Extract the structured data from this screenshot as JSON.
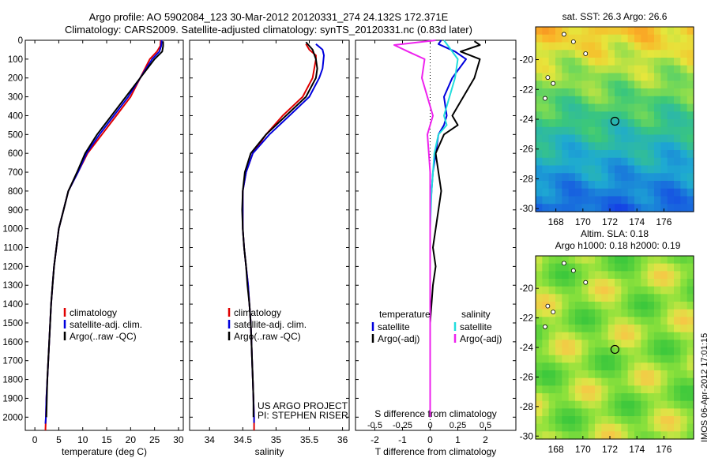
{
  "header": {
    "line1": "Argo profile: AO 5902084_123 30-Mar-2012 20120331_274 24.132S 172.371E",
    "line2": "Climatology: CARS2009. Satellite-adjusted climatology: synTS_20120331.nc (0.83d later)"
  },
  "credit": {
    "line1": "US ARGO PROJECT",
    "line2": "PI: STEPHEN RISER"
  },
  "stamp": "IMOS 06-Apr-2012 17:01:15",
  "colors": {
    "climatology": "#e00000",
    "satellite": "#0000dd",
    "argo": "#000000",
    "cyan": "#22dddd",
    "magenta": "#ee22ee"
  },
  "chart_data": [
    {
      "type": "line",
      "xlabel": "temperature (deg C)",
      "ylabel": "",
      "xlim": [
        -2,
        31
      ],
      "ylim": [
        2070,
        0
      ],
      "xticks": [
        0,
        5,
        10,
        15,
        20,
        25,
        30
      ],
      "yticks": [
        0,
        100,
        200,
        300,
        400,
        500,
        600,
        700,
        800,
        900,
        1000,
        1100,
        1200,
        1300,
        1400,
        1500,
        1600,
        1700,
        1800,
        1900,
        2000
      ],
      "legend": [
        "climatology",
        "satellite-adj. clim.",
        "Argo(..raw -QC)"
      ],
      "series": [
        {
          "name": "climatology",
          "color": "#e00000",
          "points": [
            [
              26.3,
              0
            ],
            [
              26.2,
              30
            ],
            [
              25.5,
              60
            ],
            [
              24,
              100
            ],
            [
              22,
              200
            ],
            [
              20,
              300
            ],
            [
              17,
              400
            ],
            [
              14,
              500
            ],
            [
              11,
              600
            ],
            [
              9,
              700
            ],
            [
              7,
              800
            ],
            [
              6,
              900
            ],
            [
              5,
              1000
            ],
            [
              4.5,
              1100
            ],
            [
              4,
              1200
            ],
            [
              3.7,
              1300
            ],
            [
              3.4,
              1400
            ],
            [
              3.2,
              1500
            ],
            [
              3,
              1600
            ],
            [
              2.8,
              1700
            ],
            [
              2.6,
              1800
            ],
            [
              2.4,
              1900
            ],
            [
              2.3,
              2000
            ],
            [
              2.2,
              2070
            ]
          ]
        },
        {
          "name": "satellite-adj. clim.",
          "color": "#0000dd",
          "points": [
            [
              26.5,
              0
            ],
            [
              26.4,
              30
            ],
            [
              26,
              60
            ],
            [
              24.5,
              100
            ],
            [
              22,
              200
            ],
            [
              19.5,
              300
            ],
            [
              16.5,
              400
            ],
            [
              13.5,
              500
            ],
            [
              10.8,
              600
            ],
            [
              9,
              700
            ],
            [
              7,
              800
            ],
            [
              6,
              900
            ],
            [
              5,
              1000
            ],
            [
              4.5,
              1100
            ],
            [
              4,
              1200
            ],
            [
              3.7,
              1300
            ],
            [
              3.4,
              1400
            ],
            [
              3.2,
              1500
            ],
            [
              3,
              1600
            ],
            [
              2.8,
              1700
            ],
            [
              2.6,
              1800
            ],
            [
              2.4,
              1900
            ],
            [
              2.3,
              2000
            ],
            [
              2.2,
              2035
            ]
          ]
        },
        {
          "name": "Argo(..raw -QC)",
          "color": "#000000",
          "points": [
            [
              26.8,
              5
            ],
            [
              26.8,
              30
            ],
            [
              26.6,
              60
            ],
            [
              25,
              100
            ],
            [
              22,
              200
            ],
            [
              19,
              300
            ],
            [
              16,
              400
            ],
            [
              13,
              500
            ],
            [
              10.5,
              600
            ],
            [
              8.8,
              700
            ],
            [
              7,
              800
            ],
            [
              6,
              900
            ],
            [
              5,
              1000
            ],
            [
              4.5,
              1100
            ],
            [
              4,
              1200
            ],
            [
              3.7,
              1300
            ],
            [
              3.4,
              1400
            ],
            [
              3.2,
              1500
            ],
            [
              3,
              1600
            ],
            [
              2.8,
              1700
            ],
            [
              2.6,
              1800
            ],
            [
              2.5,
              1900
            ],
            [
              2.4,
              2000
            ]
          ]
        }
      ]
    },
    {
      "type": "line",
      "xlabel": "salinity",
      "ylabel": "",
      "xlim": [
        33.7,
        36.1
      ],
      "ylim": [
        2070,
        0
      ],
      "xticks": [
        34,
        34.5,
        35,
        35.5,
        36
      ],
      "legend": [
        "climatology",
        "satellite-adj. clim.",
        "Argo(..raw -QC)"
      ],
      "series": [
        {
          "name": "climatology",
          "color": "#e00000",
          "points": [
            [
              35.45,
              20
            ],
            [
              35.5,
              50
            ],
            [
              35.6,
              80
            ],
            [
              35.6,
              100
            ],
            [
              35.55,
              200
            ],
            [
              35.4,
              300
            ],
            [
              35.1,
              400
            ],
            [
              34.85,
              500
            ],
            [
              34.65,
              600
            ],
            [
              34.55,
              700
            ],
            [
              34.5,
              800
            ],
            [
              34.5,
              900
            ],
            [
              34.5,
              1000
            ],
            [
              34.52,
              1100
            ],
            [
              34.55,
              1200
            ],
            [
              34.58,
              1300
            ],
            [
              34.6,
              1400
            ],
            [
              34.62,
              1500
            ],
            [
              34.63,
              1600
            ],
            [
              34.64,
              1700
            ],
            [
              34.65,
              1800
            ],
            [
              34.66,
              1900
            ],
            [
              34.67,
              2000
            ],
            [
              34.67,
              2070
            ]
          ]
        },
        {
          "name": "satellite-adj. clim.",
          "color": "#0000dd",
          "points": [
            [
              35.6,
              20
            ],
            [
              35.7,
              50
            ],
            [
              35.72,
              80
            ],
            [
              35.7,
              150
            ],
            [
              35.65,
              200
            ],
            [
              35.5,
              300
            ],
            [
              35.2,
              400
            ],
            [
              34.9,
              500
            ],
            [
              34.65,
              600
            ],
            [
              34.55,
              700
            ],
            [
              34.5,
              800
            ],
            [
              34.5,
              900
            ],
            [
              34.5,
              1000
            ],
            [
              34.52,
              1100
            ],
            [
              34.55,
              1200
            ],
            [
              34.58,
              1300
            ],
            [
              34.6,
              1400
            ],
            [
              34.62,
              1500
            ],
            [
              34.63,
              1600
            ],
            [
              34.64,
              1700
            ],
            [
              34.65,
              1800
            ],
            [
              34.66,
              1900
            ],
            [
              34.67,
              2000
            ],
            [
              34.67,
              2030
            ]
          ]
        },
        {
          "name": "Argo(..raw -QC)",
          "color": "#000000",
          "points": [
            [
              35.45,
              10
            ],
            [
              35.55,
              50
            ],
            [
              35.6,
              100
            ],
            [
              35.62,
              150
            ],
            [
              35.6,
              200
            ],
            [
              35.45,
              300
            ],
            [
              35.15,
              400
            ],
            [
              34.85,
              500
            ],
            [
              34.62,
              600
            ],
            [
              34.53,
              700
            ],
            [
              34.5,
              800
            ],
            [
              34.49,
              900
            ],
            [
              34.5,
              1000
            ],
            [
              34.52,
              1100
            ],
            [
              34.55,
              1200
            ],
            [
              34.57,
              1300
            ],
            [
              34.6,
              1400
            ],
            [
              34.62,
              1500
            ],
            [
              34.63,
              1600
            ],
            [
              34.64,
              1700
            ],
            [
              34.65,
              1800
            ],
            [
              34.66,
              1900
            ],
            [
              34.66,
              2000
            ]
          ]
        }
      ]
    },
    {
      "type": "line",
      "xlabel": "T difference from climatology",
      "x2label": "S difference from climatology",
      "ylabel": "",
      "xlim": [
        -2.7,
        3.1
      ],
      "ylim": [
        2070,
        0
      ],
      "xticks": [
        -2,
        -1,
        0,
        1,
        2
      ],
      "x2ticks": [
        -0.5,
        -0.25,
        0,
        0.25,
        0.5
      ],
      "legend_groups": [
        {
          "title": "temperature",
          "items": [
            "satellite",
            "Argo(-adj)"
          ]
        },
        {
          "title": "salinity",
          "items": [
            "satellite",
            "Argo(-adj)"
          ]
        }
      ],
      "series": [
        {
          "name": "temperature satellite",
          "color": "#0000dd",
          "points": [
            [
              0.4,
              0
            ],
            [
              0.3,
              20
            ],
            [
              0.9,
              60
            ],
            [
              1.3,
              100
            ],
            [
              0.8,
              200
            ],
            [
              0.5,
              300
            ],
            [
              0.6,
              400
            ],
            [
              0.5,
              450
            ],
            [
              0.3,
              500
            ],
            [
              0.2,
              600
            ],
            [
              0.1,
              700
            ],
            [
              0.05,
              800
            ],
            [
              0,
              900
            ],
            [
              0,
              1000
            ],
            [
              0,
              1100
            ],
            [
              0,
              1200
            ],
            [
              0,
              1500
            ],
            [
              0,
              2000
            ]
          ]
        },
        {
          "name": "temperature Argo(-adj)",
          "color": "#000000",
          "points": [
            [
              1.6,
              5
            ],
            [
              1.8,
              25
            ],
            [
              1.1,
              60
            ],
            [
              1.8,
              100
            ],
            [
              1.6,
              200
            ],
            [
              1.2,
              300
            ],
            [
              0.8,
              400
            ],
            [
              1,
              450
            ],
            [
              0.5,
              500
            ],
            [
              0.2,
              600
            ],
            [
              0.3,
              700
            ],
            [
              0.4,
              800
            ],
            [
              0.3,
              900
            ],
            [
              0.2,
              1000
            ],
            [
              0.1,
              1100
            ],
            [
              0.2,
              1200
            ],
            [
              0.1,
              1300
            ],
            [
              0,
              1500
            ],
            [
              0,
              2000
            ]
          ]
        },
        {
          "name": "salinity satellite",
          "color": "#22dddd",
          "points": [
            [
              0.5,
              0
            ],
            [
              0.7,
              40
            ],
            [
              1,
              100
            ],
            [
              0.9,
              200
            ],
            [
              0.7,
              300
            ],
            [
              0.5,
              400
            ],
            [
              0.6,
              450
            ],
            [
              0.3,
              500
            ],
            [
              0.15,
              600
            ],
            [
              0.05,
              800
            ],
            [
              0,
              1000
            ],
            [
              0,
              1500
            ],
            [
              0,
              2000
            ]
          ]
        },
        {
          "name": "salinity Argo(-adj)",
          "color": "#ee22ee",
          "points": [
            [
              0.2,
              0
            ],
            [
              -1.3,
              25
            ],
            [
              -0.8,
              60
            ],
            [
              -0.2,
              100
            ],
            [
              -0.3,
              200
            ],
            [
              -0.1,
              300
            ],
            [
              0.1,
              400
            ],
            [
              -0.1,
              500
            ],
            [
              -0.05,
              600
            ],
            [
              0,
              700
            ],
            [
              0,
              1000
            ],
            [
              0,
              1500
            ],
            [
              0,
              2000
            ]
          ]
        }
      ]
    },
    {
      "type": "heatmap",
      "title": "sat. SST: 26.3 Argo: 26.6",
      "xticks": [
        168,
        170,
        172,
        174,
        176
      ],
      "yticks": [
        -20,
        -22,
        -24,
        -26,
        -28,
        -30
      ],
      "xlim": [
        166.5,
        178.2
      ],
      "ylim": [
        -30.2,
        -17.8
      ],
      "marker": [
        172.371,
        -24.132
      ]
    },
    {
      "type": "heatmap",
      "title": "Altim. SLA: 0.18",
      "subtitle": "Argo h1000: 0.18 h2000: 0.19",
      "xticks": [
        168,
        170,
        172,
        174,
        176
      ],
      "yticks": [
        -20,
        -22,
        -24,
        -26,
        -28,
        -30
      ],
      "xlim": [
        166.5,
        178.2
      ],
      "ylim": [
        -30.2,
        -17.8
      ],
      "marker": [
        172.371,
        -24.132
      ]
    }
  ]
}
